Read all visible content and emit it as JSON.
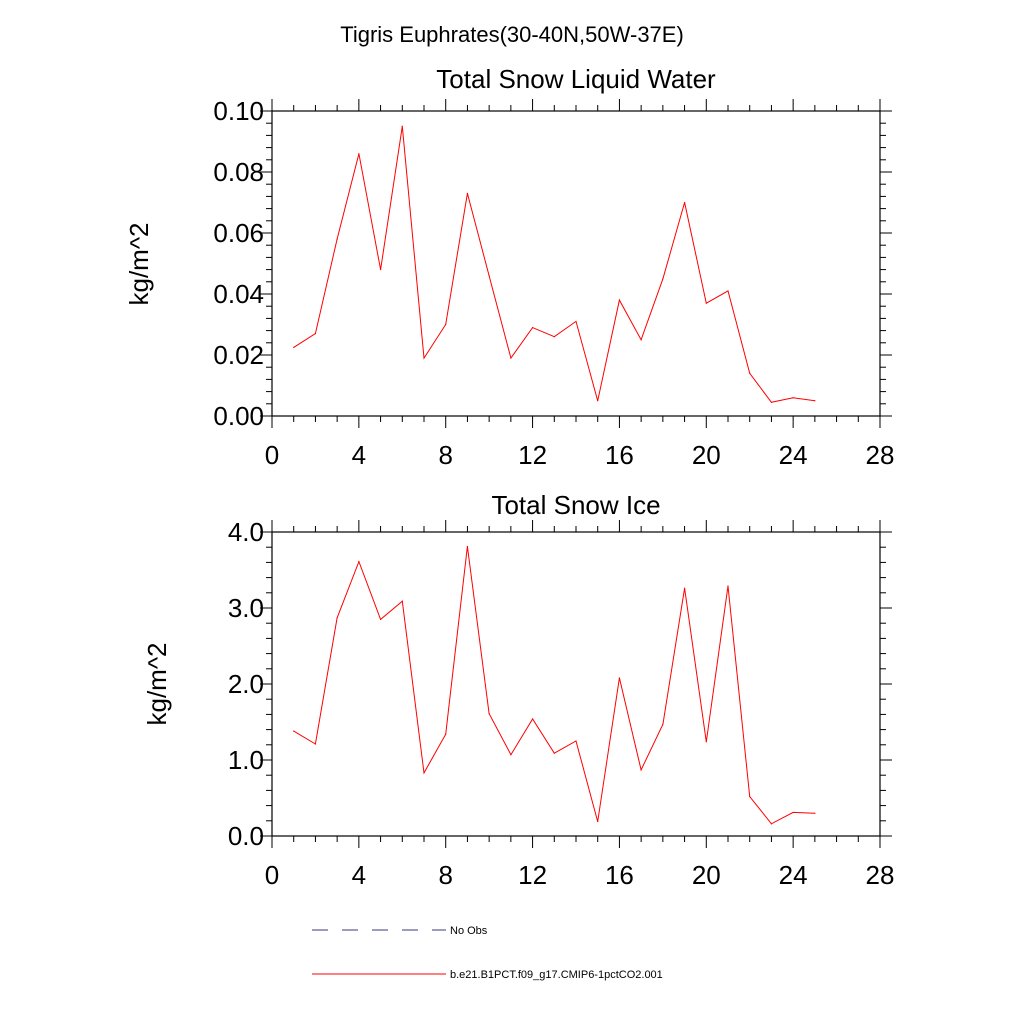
{
  "figure": {
    "main_title": "Tigris Euphrates(30-40N,50W-37E)"
  },
  "chart_data": [
    {
      "type": "line",
      "title": "Total Snow Liquid Water",
      "ylabel": "kg/m^2",
      "xlabel": "",
      "xlim": [
        0,
        28
      ],
      "ylim": [
        0,
        0.1
      ],
      "x_ticks": [
        0,
        4,
        8,
        12,
        16,
        20,
        24,
        28
      ],
      "x_tick_labels": [
        "0",
        "4",
        "8",
        "12",
        "16",
        "20",
        "24",
        "28"
      ],
      "y_ticks": [
        0,
        0.02,
        0.04,
        0.06,
        0.08,
        0.1
      ],
      "y_tick_labels": [
        "0.00",
        "0.02",
        "0.04",
        "0.06",
        "0.08",
        "0.10"
      ],
      "grid": false,
      "series": [
        {
          "name": "b.e21.B1PCT.f09_g17.CMIP6-1pctCO2.001",
          "color": "#ff0000",
          "x": [
            1,
            2,
            3,
            4,
            5,
            6,
            7,
            8,
            9,
            10,
            11,
            12,
            13,
            14,
            15,
            16,
            17,
            18,
            19,
            20,
            21,
            22,
            23,
            24,
            25
          ],
          "y": [
            0.0225,
            0.027,
            0.058,
            0.086,
            0.048,
            0.095,
            0.019,
            0.03,
            0.073,
            0.046,
            0.019,
            0.029,
            0.026,
            0.031,
            0.005,
            0.038,
            0.025,
            0.045,
            0.07,
            0.037,
            0.041,
            0.014,
            0.0045,
            0.006,
            0.005
          ]
        }
      ]
    },
    {
      "type": "line",
      "title": "Total Snow Ice",
      "ylabel": "kg/m^2",
      "xlabel": "",
      "xlim": [
        0,
        28
      ],
      "ylim": [
        0,
        4
      ],
      "x_ticks": [
        0,
        4,
        8,
        12,
        16,
        20,
        24,
        28
      ],
      "x_tick_labels": [
        "0",
        "4",
        "8",
        "12",
        "16",
        "20",
        "24",
        "28"
      ],
      "y_ticks": [
        0,
        1,
        2,
        3,
        4
      ],
      "y_tick_labels": [
        "0.0",
        "1.0",
        "2.0",
        "3.0",
        "4.0"
      ],
      "grid": false,
      "series": [
        {
          "name": "b.e21.B1PCT.f09_g17.CMIP6-1pctCO2.001",
          "color": "#ff0000",
          "x": [
            1,
            2,
            3,
            4,
            5,
            6,
            7,
            8,
            9,
            10,
            11,
            12,
            13,
            14,
            15,
            16,
            17,
            18,
            19,
            20,
            21,
            22,
            23,
            24,
            25
          ],
          "y": [
            1.38,
            1.21,
            2.87,
            3.61,
            2.85,
            3.09,
            0.83,
            1.34,
            3.81,
            1.61,
            1.07,
            1.54,
            1.09,
            1.25,
            0.19,
            2.08,
            0.87,
            1.47,
            3.26,
            1.24,
            3.29,
            0.52,
            0.16,
            0.31,
            0.3
          ]
        }
      ]
    }
  ],
  "legend": {
    "placement": "bottom-left",
    "items": [
      {
        "label": "No Obs",
        "style": "dashed",
        "color": "#3a3a7a"
      },
      {
        "label": "b.e21.B1PCT.f09_g17.CMIP6-1pctCO2.001",
        "style": "solid",
        "color": "#ff0000"
      }
    ]
  }
}
